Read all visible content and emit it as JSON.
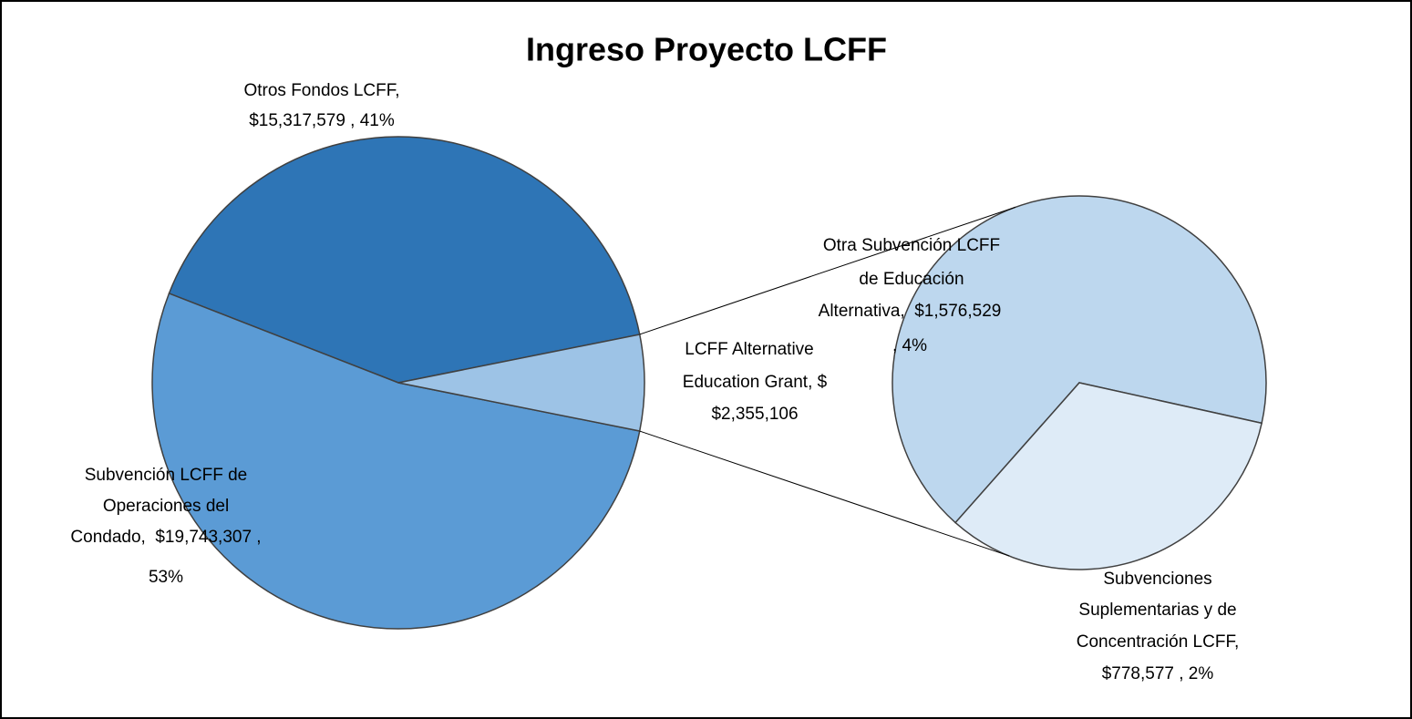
{
  "chart_data": {
    "type": "pie",
    "title": "Ingreso Proyecto LCFF",
    "values": [
      15317579,
      19743307,
      2355106
    ],
    "colors": [
      "#2e75b6",
      "#5b9bd5",
      "#9dc3e6"
    ],
    "labels": [
      [
        "Otros Fondos LCFF,",
        "$15,317,579 , 41%"
      ],
      [
        "Subvención LCFF de",
        "Operaciones del",
        "Condado,  $19,743,307 ,",
        "53%"
      ],
      [
        "LCFF Alternative",
        "Education Grant, $",
        "$2,355,106"
      ]
    ],
    "detail": {
      "values": [
        1576529,
        778577
      ],
      "colors": [
        "#bdd7ee",
        "#deebf7"
      ],
      "labels": [
        [
          "Otra Subvención LCFF",
          "de Educación",
          "Alternativa,  $1,576,529",
          ", 4%"
        ],
        [
          "Subvenciones",
          "Suplementarias y de",
          "Concentración LCFF,",
          "$778,577 , 2%"
        ]
      ]
    }
  }
}
